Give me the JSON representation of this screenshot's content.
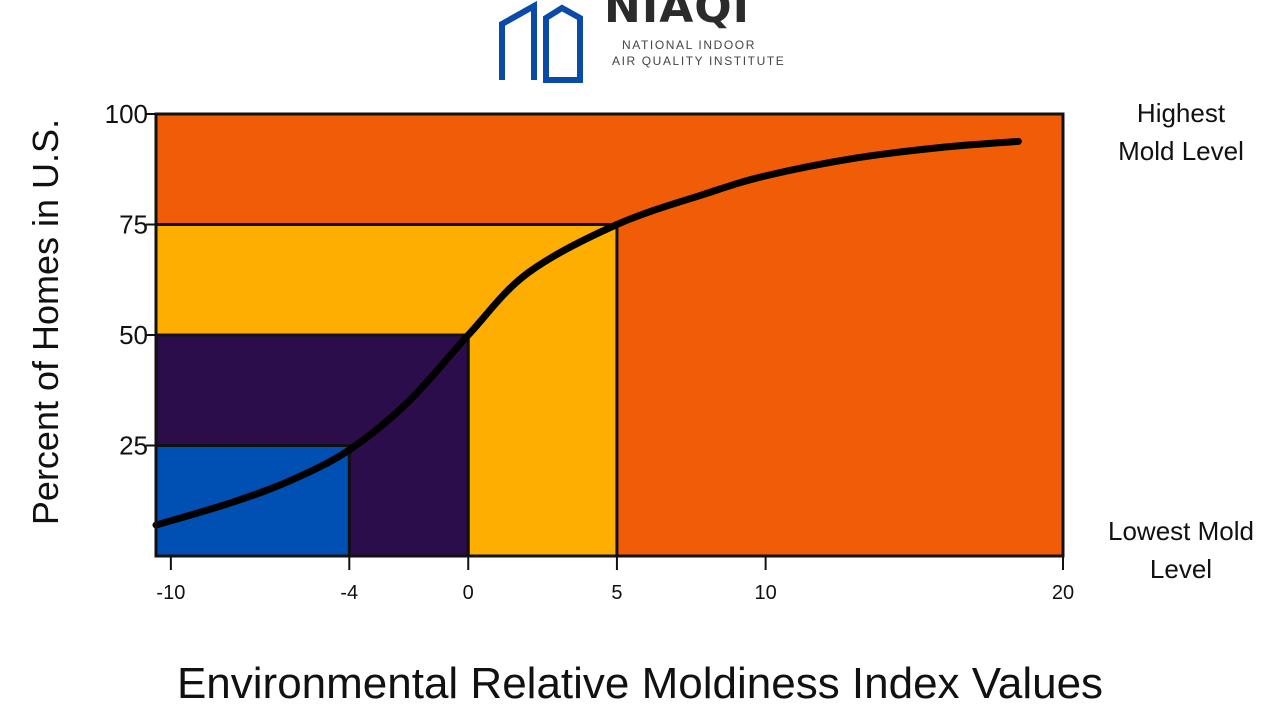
{
  "logo": {
    "wordmark": "NIAQI",
    "line1": "NATIONAL INDOOR",
    "line2": "AIR QUALITY INSTITUTE",
    "icon": "house-outline-icon",
    "color": "#0a4aa8"
  },
  "side_labels": {
    "top": "Highest Mold Level",
    "bottom": "Lowest Mold Level"
  },
  "chart_data": {
    "type": "area",
    "title": "",
    "xlabel": "Environmental Relative Moldiness Index Values",
    "ylabel": "Percent of Homes in U.S.",
    "xlim": [
      -10.5,
      20
    ],
    "ylim": [
      0,
      100
    ],
    "x_ticks": [
      "-10",
      "-4",
      "0",
      "5",
      "10",
      "20"
    ],
    "y_ticks": [
      "25",
      "50",
      "75",
      "100"
    ],
    "curve": {
      "x": [
        -10.5,
        -8,
        -6,
        -4,
        -2,
        0,
        2,
        5,
        8,
        10,
        13,
        16,
        18.5
      ],
      "y": [
        7,
        12,
        17,
        24,
        35,
        50,
        64,
        75,
        82,
        86,
        90,
        92.5,
        93.8
      ]
    },
    "regions": [
      {
        "x_max": 20,
        "y_max": 100,
        "color": "#f15d07"
      },
      {
        "x_max": 5,
        "y_max": 75,
        "color": "#fdae00"
      },
      {
        "x_max": 0,
        "y_max": 50,
        "color": "#2a0d4a"
      },
      {
        "x_max": -4,
        "y_max": 25,
        "color": "#0050b3"
      }
    ],
    "grid": false
  }
}
